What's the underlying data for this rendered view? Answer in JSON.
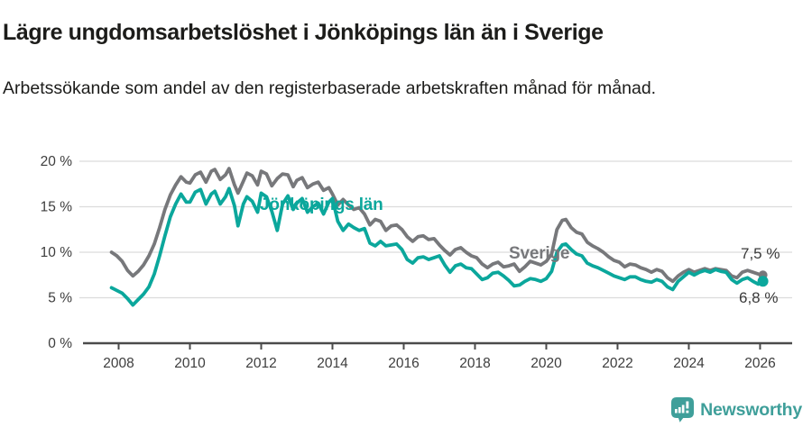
{
  "header": {
    "title": "Lägre ungdomsarbetslöshet i Jönköpings län än i Sverige",
    "subtitle": "Arbetssökande som andel av den registerbaserade arbetskraften månad för månad."
  },
  "chart_data": {
    "type": "line",
    "title": "Lägre ungdomsarbetslöshet i Jönköpings län än i Sverige",
    "subtitle": "Arbetssökande som andel av den registerbaserade arbetskraften månad för månad.",
    "unit": "%",
    "grid": true,
    "legend_position": "inline-labels",
    "xlim": [
      2007.0,
      2026.9
    ],
    "ylim": [
      0,
      20
    ],
    "yticks": [
      0,
      5,
      10,
      15,
      20
    ],
    "ytick_labels": [
      "0 %",
      "5 %",
      "10 %",
      "15 %",
      "20 %"
    ],
    "xticks": [
      2008,
      2010,
      2012,
      2014,
      2016,
      2018,
      2020,
      2022,
      2024,
      2026
    ],
    "xtick_labels": [
      "2008",
      "2010",
      "2012",
      "2014",
      "2016",
      "2018",
      "2020",
      "2022",
      "2024",
      "2026"
    ],
    "series": [
      {
        "id": "sverige",
        "name": "Sverige",
        "color": "#77787b",
        "end_label": "7,5 %",
        "end_value": 7.5,
        "dot_radius": 5,
        "points": [
          [
            2007.8,
            10.0
          ],
          [
            2007.95,
            9.6
          ],
          [
            2008.1,
            9.0
          ],
          [
            2008.25,
            8.0
          ],
          [
            2008.4,
            7.4
          ],
          [
            2008.55,
            7.9
          ],
          [
            2008.7,
            8.6
          ],
          [
            2008.85,
            9.6
          ],
          [
            2009.0,
            10.9
          ],
          [
            2009.15,
            12.7
          ],
          [
            2009.3,
            14.7
          ],
          [
            2009.45,
            16.3
          ],
          [
            2009.6,
            17.4
          ],
          [
            2009.75,
            18.3
          ],
          [
            2009.9,
            17.7
          ],
          [
            2010.0,
            17.6
          ],
          [
            2010.15,
            18.5
          ],
          [
            2010.3,
            18.8
          ],
          [
            2010.45,
            17.7
          ],
          [
            2010.6,
            18.9
          ],
          [
            2010.7,
            19.1
          ],
          [
            2010.85,
            18.0
          ],
          [
            2011.0,
            18.5
          ],
          [
            2011.1,
            19.2
          ],
          [
            2011.25,
            17.4
          ],
          [
            2011.35,
            16.5
          ],
          [
            2011.5,
            17.8
          ],
          [
            2011.6,
            18.7
          ],
          [
            2011.75,
            18.4
          ],
          [
            2011.9,
            17.4
          ],
          [
            2012.0,
            18.9
          ],
          [
            2012.15,
            18.6
          ],
          [
            2012.3,
            17.3
          ],
          [
            2012.45,
            18.1
          ],
          [
            2012.6,
            18.6
          ],
          [
            2012.75,
            18.5
          ],
          [
            2012.9,
            17.2
          ],
          [
            2013.0,
            17.9
          ],
          [
            2013.15,
            18.2
          ],
          [
            2013.3,
            17.1
          ],
          [
            2013.45,
            17.5
          ],
          [
            2013.6,
            17.7
          ],
          [
            2013.75,
            16.8
          ],
          [
            2013.9,
            17.1
          ],
          [
            2014.0,
            16.4
          ],
          [
            2014.15,
            15.2
          ],
          [
            2014.3,
            15.8
          ],
          [
            2014.45,
            15.2
          ],
          [
            2014.6,
            14.7
          ],
          [
            2014.75,
            14.9
          ],
          [
            2014.9,
            14.2
          ],
          [
            2015.05,
            13.0
          ],
          [
            2015.2,
            13.6
          ],
          [
            2015.35,
            13.4
          ],
          [
            2015.5,
            12.4
          ],
          [
            2015.65,
            12.9
          ],
          [
            2015.8,
            13.0
          ],
          [
            2015.95,
            12.5
          ],
          [
            2016.1,
            11.7
          ],
          [
            2016.25,
            11.2
          ],
          [
            2016.4,
            11.7
          ],
          [
            2016.55,
            11.8
          ],
          [
            2016.7,
            11.4
          ],
          [
            2016.85,
            11.5
          ],
          [
            2017.0,
            10.8
          ],
          [
            2017.15,
            10.2
          ],
          [
            2017.3,
            9.7
          ],
          [
            2017.45,
            10.3
          ],
          [
            2017.6,
            10.5
          ],
          [
            2017.75,
            10.0
          ],
          [
            2017.9,
            9.6
          ],
          [
            2018.05,
            9.4
          ],
          [
            2018.2,
            8.7
          ],
          [
            2018.35,
            8.3
          ],
          [
            2018.5,
            8.7
          ],
          [
            2018.65,
            8.9
          ],
          [
            2018.8,
            8.4
          ],
          [
            2018.95,
            8.5
          ],
          [
            2019.1,
            8.7
          ],
          [
            2019.25,
            7.9
          ],
          [
            2019.4,
            8.4
          ],
          [
            2019.55,
            9.0
          ],
          [
            2019.7,
            8.8
          ],
          [
            2019.85,
            8.6
          ],
          [
            2020.0,
            9.0
          ],
          [
            2020.15,
            9.8
          ],
          [
            2020.3,
            12.5
          ],
          [
            2020.45,
            13.5
          ],
          [
            2020.55,
            13.6
          ],
          [
            2020.7,
            12.7
          ],
          [
            2020.85,
            12.2
          ],
          [
            2021.0,
            12.0
          ],
          [
            2021.15,
            11.1
          ],
          [
            2021.3,
            10.7
          ],
          [
            2021.45,
            10.4
          ],
          [
            2021.6,
            10.0
          ],
          [
            2021.75,
            9.5
          ],
          [
            2021.9,
            9.1
          ],
          [
            2022.05,
            8.9
          ],
          [
            2022.2,
            8.4
          ],
          [
            2022.35,
            8.7
          ],
          [
            2022.5,
            8.6
          ],
          [
            2022.65,
            8.3
          ],
          [
            2022.8,
            8.1
          ],
          [
            2022.95,
            7.8
          ],
          [
            2023.1,
            8.1
          ],
          [
            2023.25,
            7.9
          ],
          [
            2023.4,
            7.2
          ],
          [
            2023.55,
            6.8
          ],
          [
            2023.7,
            7.4
          ],
          [
            2023.85,
            7.8
          ],
          [
            2024.0,
            8.1
          ],
          [
            2024.15,
            7.8
          ],
          [
            2024.3,
            8.0
          ],
          [
            2024.45,
            8.2
          ],
          [
            2024.6,
            8.0
          ],
          [
            2024.75,
            8.2
          ],
          [
            2024.9,
            8.1
          ],
          [
            2025.05,
            8.0
          ],
          [
            2025.2,
            7.4
          ],
          [
            2025.35,
            7.2
          ],
          [
            2025.5,
            7.8
          ],
          [
            2025.65,
            8.0
          ],
          [
            2025.8,
            7.8
          ],
          [
            2025.95,
            7.6
          ],
          [
            2026.08,
            7.5
          ]
        ]
      },
      {
        "id": "jonkopings-lan",
        "name": "Jönköpings län",
        "color": "#0ba79c",
        "end_label": "6,8 %",
        "end_value": 6.8,
        "dot_radius": 6,
        "points": [
          [
            2007.8,
            6.1
          ],
          [
            2007.95,
            5.8
          ],
          [
            2008.1,
            5.5
          ],
          [
            2008.25,
            4.9
          ],
          [
            2008.4,
            4.2
          ],
          [
            2008.55,
            4.8
          ],
          [
            2008.7,
            5.4
          ],
          [
            2008.85,
            6.2
          ],
          [
            2009.0,
            7.6
          ],
          [
            2009.15,
            9.6
          ],
          [
            2009.3,
            11.8
          ],
          [
            2009.45,
            13.9
          ],
          [
            2009.6,
            15.3
          ],
          [
            2009.75,
            16.4
          ],
          [
            2009.9,
            15.5
          ],
          [
            2010.0,
            15.5
          ],
          [
            2010.15,
            16.6
          ],
          [
            2010.3,
            16.9
          ],
          [
            2010.45,
            15.3
          ],
          [
            2010.6,
            16.4
          ],
          [
            2010.7,
            16.7
          ],
          [
            2010.85,
            15.3
          ],
          [
            2011.0,
            16.1
          ],
          [
            2011.1,
            17.0
          ],
          [
            2011.25,
            15.1
          ],
          [
            2011.35,
            12.9
          ],
          [
            2011.5,
            15.3
          ],
          [
            2011.6,
            16.1
          ],
          [
            2011.75,
            15.6
          ],
          [
            2011.9,
            14.4
          ],
          [
            2012.0,
            16.5
          ],
          [
            2012.15,
            16.1
          ],
          [
            2012.3,
            14.5
          ],
          [
            2012.45,
            12.4
          ],
          [
            2012.6,
            15.3
          ],
          [
            2012.75,
            16.2
          ],
          [
            2012.9,
            14.7
          ],
          [
            2013.0,
            15.4
          ],
          [
            2013.15,
            15.9
          ],
          [
            2013.3,
            14.4
          ],
          [
            2013.45,
            15.0
          ],
          [
            2013.6,
            15.4
          ],
          [
            2013.75,
            14.2
          ],
          [
            2013.9,
            15.5
          ],
          [
            2014.0,
            15.9
          ],
          [
            2014.15,
            13.4
          ],
          [
            2014.3,
            12.4
          ],
          [
            2014.45,
            13.1
          ],
          [
            2014.6,
            12.7
          ],
          [
            2014.75,
            12.4
          ],
          [
            2014.9,
            12.6
          ],
          [
            2015.05,
            11.0
          ],
          [
            2015.2,
            10.7
          ],
          [
            2015.35,
            11.2
          ],
          [
            2015.5,
            10.7
          ],
          [
            2015.65,
            10.8
          ],
          [
            2015.8,
            10.9
          ],
          [
            2015.95,
            10.3
          ],
          [
            2016.1,
            9.2
          ],
          [
            2016.25,
            8.8
          ],
          [
            2016.4,
            9.4
          ],
          [
            2016.55,
            9.5
          ],
          [
            2016.7,
            9.2
          ],
          [
            2016.85,
            9.4
          ],
          [
            2017.0,
            9.6
          ],
          [
            2017.15,
            8.6
          ],
          [
            2017.3,
            7.8
          ],
          [
            2017.45,
            8.5
          ],
          [
            2017.6,
            8.7
          ],
          [
            2017.75,
            8.3
          ],
          [
            2017.9,
            8.2
          ],
          [
            2018.05,
            7.6
          ],
          [
            2018.2,
            7.0
          ],
          [
            2018.35,
            7.2
          ],
          [
            2018.5,
            7.7
          ],
          [
            2018.65,
            7.8
          ],
          [
            2018.8,
            7.4
          ],
          [
            2018.95,
            6.9
          ],
          [
            2019.1,
            6.3
          ],
          [
            2019.25,
            6.4
          ],
          [
            2019.4,
            6.8
          ],
          [
            2019.55,
            7.1
          ],
          [
            2019.7,
            7.0
          ],
          [
            2019.85,
            6.8
          ],
          [
            2020.0,
            7.1
          ],
          [
            2020.15,
            7.9
          ],
          [
            2020.3,
            10.0
          ],
          [
            2020.45,
            10.8
          ],
          [
            2020.55,
            10.9
          ],
          [
            2020.7,
            10.3
          ],
          [
            2020.85,
            9.8
          ],
          [
            2021.0,
            9.6
          ],
          [
            2021.15,
            8.8
          ],
          [
            2021.3,
            8.5
          ],
          [
            2021.45,
            8.3
          ],
          [
            2021.6,
            8.0
          ],
          [
            2021.75,
            7.7
          ],
          [
            2021.9,
            7.4
          ],
          [
            2022.05,
            7.2
          ],
          [
            2022.2,
            7.0
          ],
          [
            2022.35,
            7.3
          ],
          [
            2022.5,
            7.3
          ],
          [
            2022.65,
            7.0
          ],
          [
            2022.8,
            6.8
          ],
          [
            2022.95,
            6.7
          ],
          [
            2023.1,
            7.0
          ],
          [
            2023.25,
            6.8
          ],
          [
            2023.4,
            6.2
          ],
          [
            2023.55,
            5.9
          ],
          [
            2023.7,
            6.8
          ],
          [
            2023.85,
            7.3
          ],
          [
            2024.0,
            7.8
          ],
          [
            2024.15,
            7.5
          ],
          [
            2024.3,
            7.8
          ],
          [
            2024.45,
            8.0
          ],
          [
            2024.6,
            7.8
          ],
          [
            2024.75,
            8.1
          ],
          [
            2024.9,
            7.9
          ],
          [
            2025.05,
            7.8
          ],
          [
            2025.2,
            7.0
          ],
          [
            2025.35,
            6.6
          ],
          [
            2025.5,
            7.0
          ],
          [
            2025.65,
            7.2
          ],
          [
            2025.8,
            6.8
          ],
          [
            2025.95,
            6.5
          ],
          [
            2026.08,
            6.8
          ]
        ]
      }
    ]
  },
  "colors": {
    "accent_teal": "#0ba79c",
    "series_gray": "#77787b",
    "grid": "#dcdcdc",
    "axis": "#4b4b4b",
    "tick_label": "#3d3d3d",
    "text": "#1c1c1a",
    "brand": "#3f9f9a"
  },
  "footer": {
    "brand": "Newsworthy",
    "logo_icon": "bar-chart-speech-bubble-icon"
  }
}
